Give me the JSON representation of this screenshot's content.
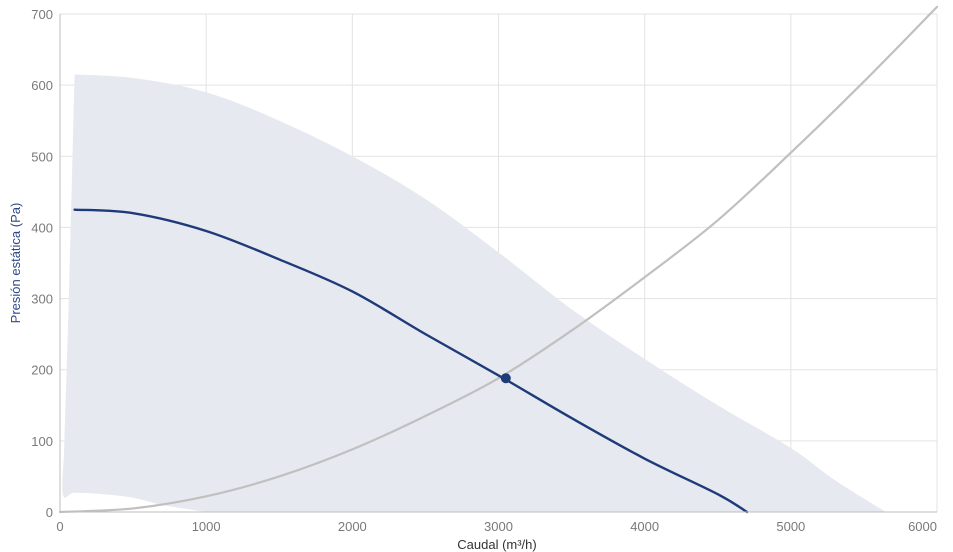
{
  "chart_data": {
    "type": "line",
    "title": "",
    "xlabel": "Caudal (m³/h)",
    "ylabel": "Presión estática (Pa)",
    "xlim": [
      0,
      6000
    ],
    "ylim": [
      0,
      700
    ],
    "x_ticks": [
      0,
      1000,
      2000,
      3000,
      4000,
      5000,
      6000
    ],
    "y_ticks": [
      0,
      100,
      200,
      300,
      400,
      500,
      600,
      700
    ],
    "grid": true,
    "colors": {
      "fan_curve": "#1e3a78",
      "system_curve": "#c0c0c0",
      "operating_region": "#e6e9f0",
      "gridlines": "#e3e3e3",
      "ylabel": "#2d4a8a",
      "xlabel": "#333333",
      "operating_point": "#1e3a78"
    },
    "operating_region": {
      "upper": [
        [
          100,
          615
        ],
        [
          500,
          610
        ],
        [
          1000,
          590
        ],
        [
          1500,
          550
        ],
        [
          2000,
          500
        ],
        [
          2500,
          440
        ],
        [
          3000,
          365
        ],
        [
          3500,
          285
        ],
        [
          4000,
          215
        ],
        [
          4500,
          150
        ],
        [
          5000,
          90
        ],
        [
          5300,
          45
        ],
        [
          5650,
          0
        ]
      ],
      "lower": [
        [
          1000,
          0
        ],
        [
          700,
          10
        ],
        [
          500,
          20
        ],
        [
          300,
          25
        ],
        [
          100,
          27
        ],
        [
          20,
          25
        ],
        [
          30,
          100
        ],
        [
          60,
          300
        ],
        [
          100,
          615
        ]
      ]
    },
    "series": [
      {
        "x": [
          100,
          500,
          1000,
          1500,
          2000,
          2500,
          3000,
          3500,
          4000,
          4500,
          4700
        ],
        "values": [
          425,
          420,
          395,
          355,
          310,
          250,
          192,
          132,
          75,
          25,
          0
        ]
      },
      {
        "x": [
          0,
          500,
          1000,
          1500,
          2000,
          2500,
          3000,
          3500,
          4000,
          4500,
          5000,
          5500,
          6000
        ],
        "values": [
          0,
          5,
          22,
          50,
          88,
          135,
          188,
          255,
          330,
          410,
          505,
          605,
          710
        ]
      }
    ],
    "operating_point": {
      "x": 3050,
      "y": 188
    }
  }
}
